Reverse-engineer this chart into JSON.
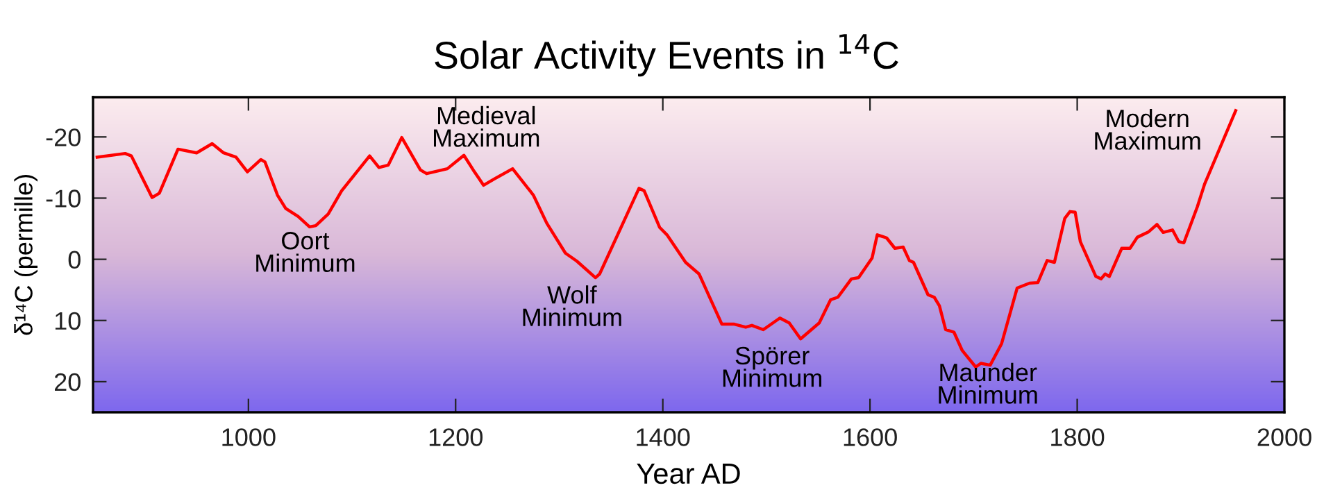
{
  "chart_data": {
    "type": "line",
    "title": "Solar Activity Events in $^{14}$C",
    "xlabel": "Year AD",
    "ylabel": "δ¹⁴C (permille)",
    "xlim": [
      850,
      2000
    ],
    "xticks": [
      1000,
      1200,
      1400,
      1600,
      1800,
      2000
    ],
    "ylim": [
      25,
      -26.5
    ],
    "yticks": [
      -20,
      -10,
      0,
      10,
      20
    ],
    "grid": false,
    "legend": false,
    "marker": "none",
    "line_style": "solid",
    "series": [
      {
        "color": "#ff0000",
        "x": [
          854,
          881,
          887,
          907,
          914,
          932,
          950,
          965,
          976,
          988,
          999,
          1012,
          1016,
          1028,
          1036,
          1048,
          1059,
          1065,
          1077,
          1090,
          1099,
          1117,
          1126,
          1135,
          1148,
          1166,
          1172,
          1192,
          1208,
          1217,
          1227,
          1237,
          1255,
          1275,
          1288,
          1306,
          1317,
          1335,
          1339,
          1377,
          1382,
          1397,
          1404,
          1422,
          1435,
          1457,
          1469,
          1480,
          1486,
          1497,
          1513,
          1522,
          1533,
          1551,
          1562,
          1569,
          1582,
          1589,
          1602,
          1607,
          1616,
          1624,
          1632,
          1638,
          1642,
          1656,
          1662,
          1667,
          1673,
          1681,
          1689,
          1702,
          1707,
          1716,
          1727,
          1742,
          1754,
          1762,
          1771,
          1778,
          1788,
          1793,
          1798,
          1803,
          1818,
          1823,
          1827,
          1831,
          1843,
          1851,
          1858,
          1869,
          1877,
          1883,
          1892,
          1898,
          1903,
          1916,
          1923,
          1934,
          1953
        ],
        "values": [
          -16.7,
          -17.3,
          -16.9,
          -10.1,
          -10.8,
          -18.0,
          -17.4,
          -18.9,
          -17.4,
          -16.7,
          -14.3,
          -16.3,
          -15.9,
          -10.5,
          -8.3,
          -7.0,
          -5.3,
          -5.5,
          -7.4,
          -11.2,
          -13.1,
          -16.9,
          -15.0,
          -15.4,
          -19.9,
          -14.6,
          -14.0,
          -14.8,
          -17.0,
          -14.6,
          -12.1,
          -13.1,
          -14.8,
          -10.5,
          -5.9,
          -1.0,
          0.3,
          3.0,
          2.4,
          -11.6,
          -11.2,
          -5.2,
          -4.0,
          0.5,
          2.4,
          10.6,
          10.6,
          11.1,
          10.8,
          11.5,
          9.6,
          10.4,
          13.0,
          10.4,
          6.6,
          6.2,
          3.2,
          3.0,
          -0.2,
          -4.0,
          -3.5,
          -1.8,
          -2.0,
          0.2,
          0.5,
          5.8,
          6.2,
          7.6,
          11.5,
          11.9,
          14.9,
          17.6,
          17.0,
          17.3,
          13.8,
          4.7,
          3.9,
          3.8,
          0.2,
          0.5,
          -6.7,
          -7.8,
          -7.7,
          -2.9,
          2.8,
          3.2,
          2.4,
          2.8,
          -1.8,
          -1.8,
          -3.6,
          -4.5,
          -5.7,
          -4.4,
          -4.8,
          -2.9,
          -2.7,
          -8.6,
          -12.3,
          -16.7,
          -24.3
        ]
      }
    ],
    "annotations": [
      "Oort\nMinimum",
      "Medieval\nMaximum",
      "Wolf\nMinimum",
      "Spörer\nMinimum",
      "Maunder\nMinimum",
      "Modern\nMaximum"
    ]
  }
}
